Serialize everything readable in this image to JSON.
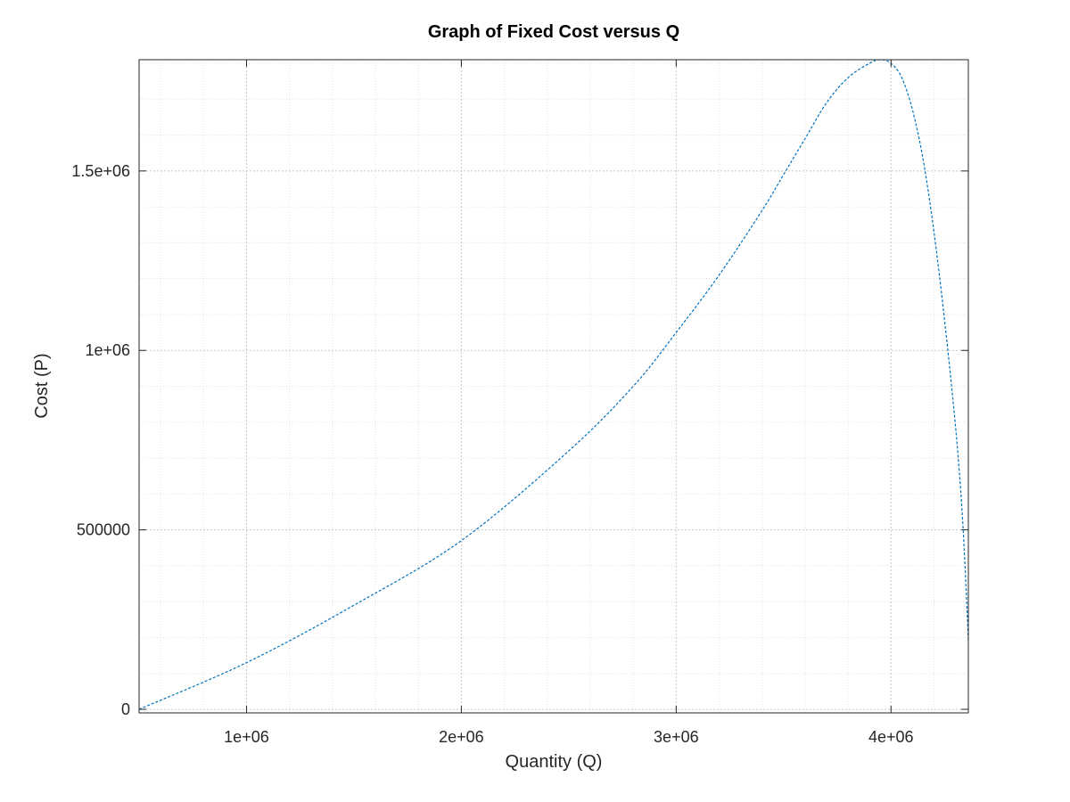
{
  "chart_data": {
    "type": "line",
    "title": "Graph of Fixed Cost versus Q",
    "xlabel": "Quantity (Q)",
    "ylabel": "Cost (P)",
    "xlim": [
      500000,
      4360000
    ],
    "ylim": [
      -10000,
      1810000
    ],
    "xticks": [
      1000000,
      2000000,
      3000000,
      4000000
    ],
    "xtick_labels": [
      "1e+06",
      "2e+06",
      "3e+06",
      "4e+06"
    ],
    "yticks": [
      0,
      500000,
      1000000,
      1500000
    ],
    "ytick_labels": [
      "0",
      "500000",
      "1e+06",
      "1.5e+06"
    ],
    "grid": true,
    "minor_grid": true,
    "series": [
      {
        "color": "#0072bd",
        "line_style": "dashed",
        "x": [
          500000,
          1000000,
          1500000,
          2000000,
          2500000,
          2800000,
          3000000,
          3200000,
          3400000,
          3500000,
          3600000,
          3700000,
          3800000,
          3900000,
          3950000,
          4000000,
          4050000,
          4100000,
          4150000,
          4200000,
          4250000,
          4300000,
          4330000,
          4350000,
          4360000
        ],
        "y": [
          0,
          130000,
          290000,
          470000,
          720000,
          900000,
          1050000,
          1210000,
          1390000,
          1490000,
          1590000,
          1690000,
          1760000,
          1800000,
          1810000,
          1800000,
          1760000,
          1670000,
          1530000,
          1330000,
          1080000,
          790000,
          560000,
          330000,
          190000
        ]
      }
    ]
  }
}
